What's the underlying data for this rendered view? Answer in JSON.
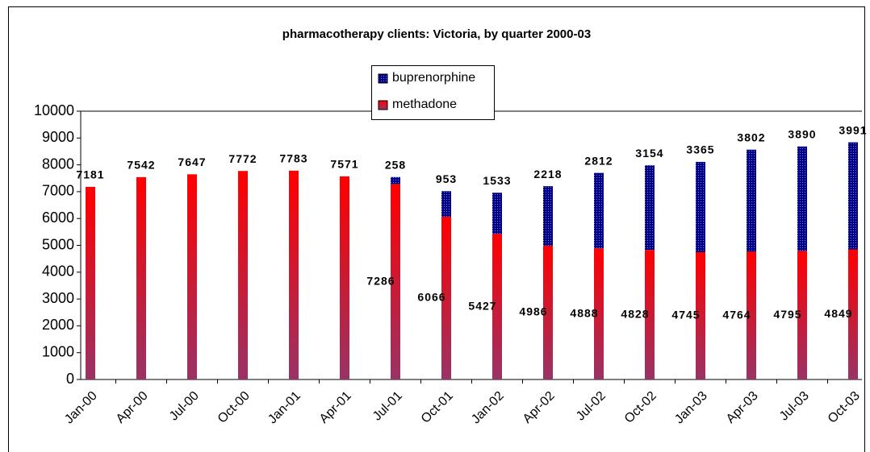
{
  "chart_data": {
    "type": "stacked-bar",
    "title": "pharmacotherapy clients: Victoria, by quarter 2000-03",
    "categories": [
      "Jan-00",
      "Apr-00",
      "Jul-00",
      "Oct-00",
      "Jan-01",
      "Apr-01",
      "Jul-01",
      "Oct-01",
      "Jan-02",
      "Apr-02",
      "Jul-02",
      "Oct-02",
      "Jan-03",
      "Apr-03",
      "Jul-03",
      "Oct-03"
    ],
    "series": [
      {
        "name": "methadone",
        "color": "#ff0000",
        "values": [
          7181,
          7542,
          7647,
          7772,
          7783,
          7571,
          7286,
          6066,
          5427,
          4986,
          4888,
          4828,
          4745,
          4764,
          4795,
          4849
        ]
      },
      {
        "name": "buprenorphine",
        "color": "#000080",
        "values": [
          null,
          null,
          null,
          null,
          null,
          null,
          258,
          953,
          1533,
          2218,
          2812,
          3154,
          3365,
          3802,
          3890,
          3991
        ]
      }
    ],
    "ylim": [
      0,
      10000
    ],
    "yticks": [
      0,
      1000,
      2000,
      3000,
      4000,
      5000,
      6000,
      7000,
      8000,
      9000,
      10000
    ],
    "grid": false
  }
}
